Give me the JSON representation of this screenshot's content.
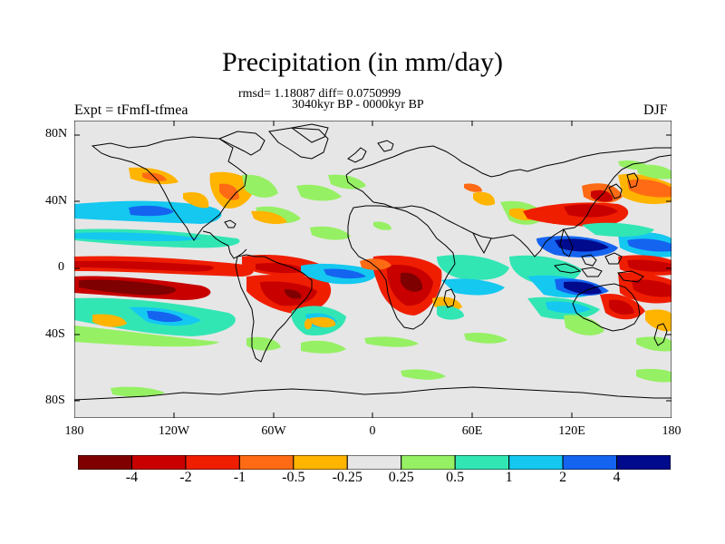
{
  "figure": {
    "title": "Precipitation (in mm/day)",
    "stats": "rmsd= 1.18087 diff= 0.0750999",
    "period": "3040kyr BP - 0000kyr BP",
    "expt_label": "Expt = tFmfI-tfmea",
    "season": "DJF"
  },
  "map": {
    "background_color": "#e6e6e6",
    "lat_ticks": [
      "80N",
      "40N",
      "0",
      "40S",
      "80S"
    ],
    "lon_ticks": [
      "180",
      "120W",
      "60W",
      "0",
      "60E",
      "120E",
      "180"
    ]
  },
  "colorbar": {
    "colors": [
      "#7f0000",
      "#c80000",
      "#f01e00",
      "#ff6a14",
      "#ffb400",
      "#e6e6e6",
      "#96f064",
      "#32e6b4",
      "#14c8f0",
      "#1464f0",
      "#000a8c"
    ],
    "labels": [
      "-4",
      "-2",
      "-1",
      "-0.5",
      "-0.25",
      "0.25",
      "0.5",
      "1",
      "2",
      "4"
    ]
  }
}
